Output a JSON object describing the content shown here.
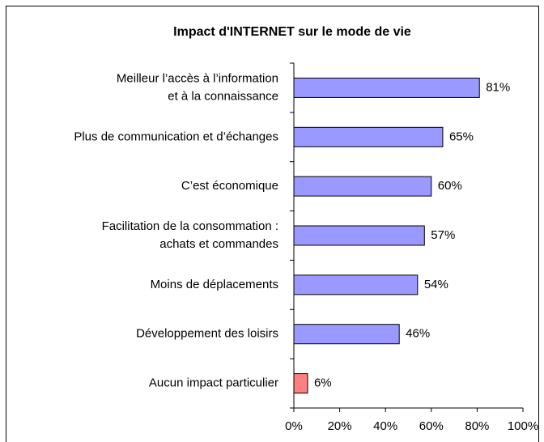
{
  "chart_data": {
    "type": "barh",
    "title": "Impact d'INTERNET sur le mode de vie",
    "categories": [
      [
        "Meilleur l’accès à l’information",
        "et à la connaissance"
      ],
      "Plus de communication et d’échanges",
      "C’est économique",
      [
        "Facilitation de la consommation :",
        "achats et commandes"
      ],
      "Moins de déplacements",
      "Développement des loisirs",
      "Aucun impact particulier"
    ],
    "values": [
      81,
      65,
      60,
      57,
      54,
      46,
      6
    ],
    "value_labels": [
      "81%",
      "65%",
      "60%",
      "57%",
      "54%",
      "46%",
      "6%"
    ],
    "colors": [
      "#9999ff",
      "#9999ff",
      "#9999ff",
      "#9999ff",
      "#9999ff",
      "#9999ff",
      "#ff8080"
    ],
    "xlim": [
      0,
      100
    ],
    "xticks": [
      {
        "value": 0,
        "label": "0%"
      },
      {
        "value": 20,
        "label": "20%"
      },
      {
        "value": 40,
        "label": "40%"
      },
      {
        "value": 60,
        "label": "60%"
      },
      {
        "value": 80,
        "label": "80%"
      },
      {
        "value": 100,
        "label": "100%"
      }
    ],
    "grid": false
  }
}
